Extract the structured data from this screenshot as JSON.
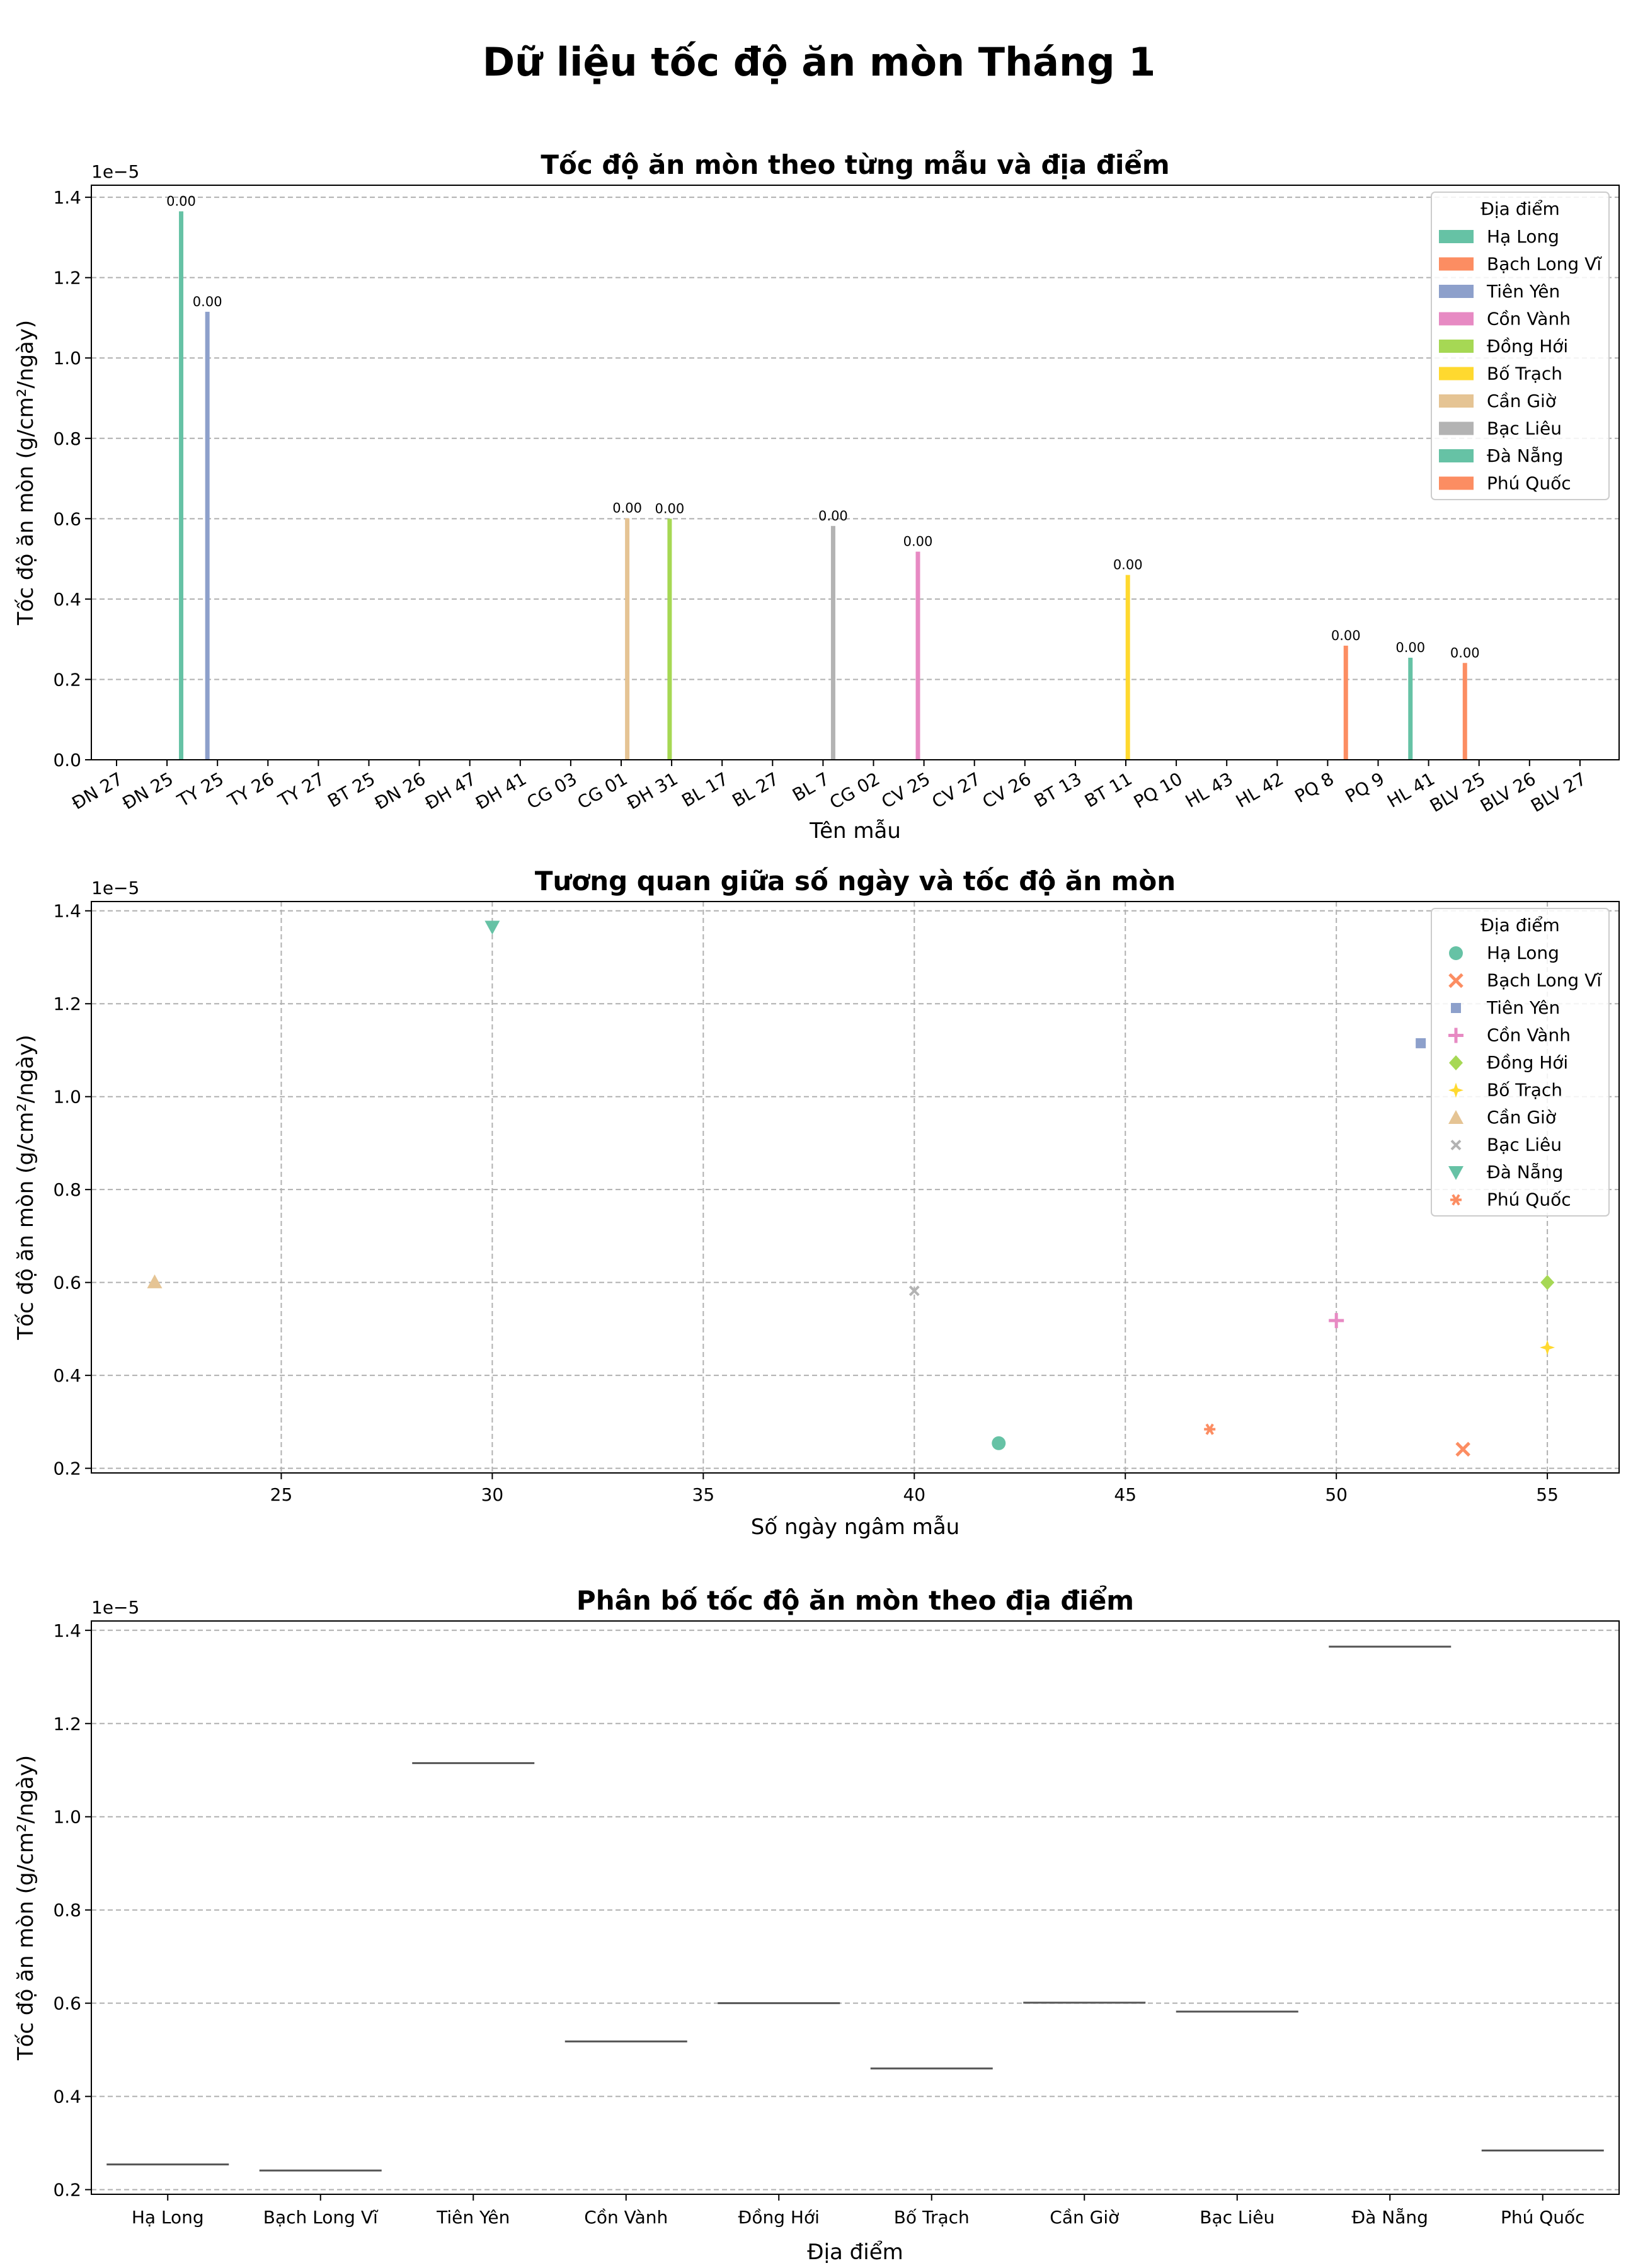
{
  "figure": {
    "title": "Dữ liệu tốc độ ăn mòn Tháng 1"
  },
  "colors": {
    "Hạ Long": "#66c2a5",
    "Bạch Long Vĩ": "#fc8d62",
    "Tiên Yên": "#8da0cb",
    "Cồn Vành": "#e78ac3",
    "Đồng Hới": "#a6d854",
    "Bố Trạch": "#ffd92f",
    "Cần Giờ": "#e5c494",
    "Bạc Liêu": "#b3b3b3",
    "Đà Nẵng": "#66c2a5",
    "Phú Quốc": "#fc8d62"
  },
  "chart_data": [
    {
      "type": "bar",
      "title": "Tốc độ ăn mòn theo từng mẫu và địa điểm",
      "xlabel": "Tên mẫu",
      "ylabel": "Tốc độ ăn mòn (g/cm²/ngày)",
      "offset_text": "1e−5",
      "ylim": [
        0,
        1.43
      ],
      "yticks": [
        "0.0",
        "0.2",
        "0.4",
        "0.6",
        "0.8",
        "1.0",
        "1.2",
        "1.4"
      ],
      "grid": "y",
      "legend": {
        "title": "Địa điểm",
        "position": "top-right",
        "entries": [
          "Hạ Long",
          "Bạch Long Vĩ",
          "Tiên Yên",
          "Cồn Vành",
          "Đồng Hới",
          "Bố Trạch",
          "Cần Giờ",
          "Bạc Liêu",
          "Đà Nẵng",
          "Phú Quốc"
        ]
      },
      "categories": [
        "ĐN 27",
        "ĐN 25",
        "TY 25",
        "TY 26",
        "TY 27",
        "BT 25",
        "ĐN 26",
        "ĐH 47",
        "ĐH 41",
        "CG 03",
        "CG 01",
        "ĐH 31",
        "BL 17",
        "BL 27",
        "BL 7",
        "CG 02",
        "CV 25",
        "CV 27",
        "CV 26",
        "BT 13",
        "BT 11",
        "PQ 10",
        "HL 43",
        "HL 42",
        "PQ 8",
        "PQ 9",
        "HL 41",
        "BLV 25",
        "BLV 26",
        "BLV 27"
      ],
      "bars": [
        {
          "category": "ĐN 25",
          "location": "Đà Nẵng",
          "value": 1.365,
          "label": "0.00"
        },
        {
          "category": "TY 25",
          "location": "Tiên Yên",
          "value": 1.115,
          "label": "0.00"
        },
        {
          "category": "CG 01",
          "location": "Cần Giờ",
          "value": 0.601,
          "label": "0.00"
        },
        {
          "category": "ĐH 31",
          "location": "Đồng Hới",
          "value": 0.6,
          "label": "0.00"
        },
        {
          "category": "BL 7",
          "location": "Bạc Liêu",
          "value": 0.582,
          "label": "0.00"
        },
        {
          "category": "CV 25",
          "location": "Cồn Vành",
          "value": 0.518,
          "label": "0.00"
        },
        {
          "category": "BT 11",
          "location": "Bố Trạch",
          "value": 0.46,
          "label": "0.00"
        },
        {
          "category": "PQ 8",
          "location": "Phú Quốc",
          "value": 0.284,
          "label": "0.00"
        },
        {
          "category": "HL 41",
          "location": "Hạ Long",
          "value": 0.254,
          "label": "0.00"
        },
        {
          "category": "BLV 25",
          "location": "Bạch Long Vĩ",
          "value": 0.241,
          "label": "0.00"
        }
      ]
    },
    {
      "type": "scatter",
      "title": "Tương quan giữa số ngày và tốc độ ăn mòn",
      "xlabel": "Số ngày ngâm mẫu",
      "ylabel": "Tốc độ ăn mòn (g/cm²/ngày)",
      "offset_text": "1e−5",
      "xlim": [
        20.5,
        56.7
      ],
      "ylim": [
        0.19,
        1.42
      ],
      "xticks": [
        "25",
        "30",
        "35",
        "40",
        "45",
        "50",
        "55"
      ],
      "yticks": [
        "0.2",
        "0.4",
        "0.6",
        "0.8",
        "1.0",
        "1.2",
        "1.4"
      ],
      "grid": "both",
      "legend": {
        "title": "Địa điểm",
        "position": "top-right"
      },
      "points": [
        {
          "location": "Hạ Long",
          "marker": "circle",
          "x": 42,
          "y": 0.254
        },
        {
          "location": "Bạch Long Vĩ",
          "marker": "x",
          "x": 53,
          "y": 0.241
        },
        {
          "location": "Tiên Yên",
          "marker": "square",
          "x": 52,
          "y": 1.115
        },
        {
          "location": "Cồn Vành",
          "marker": "plus",
          "x": 50,
          "y": 0.518
        },
        {
          "location": "Đồng Hới",
          "marker": "diamond",
          "x": 55,
          "y": 0.6
        },
        {
          "location": "Bố Trạch",
          "marker": "star4",
          "x": 55,
          "y": 0.46
        },
        {
          "location": "Cần Giờ",
          "marker": "triangle-up",
          "x": 22,
          "y": 0.601
        },
        {
          "location": "Bạc Liêu",
          "marker": "x-small",
          "x": 40,
          "y": 0.582
        },
        {
          "location": "Đà Nẵng",
          "marker": "triangle-down",
          "x": 30,
          "y": 1.365
        },
        {
          "location": "Phú Quốc",
          "marker": "asterisk",
          "x": 47,
          "y": 0.284
        }
      ]
    },
    {
      "type": "box",
      "title": "Phân bố tốc độ ăn mòn theo địa điểm",
      "xlabel": "Địa điểm",
      "ylabel": "Tốc độ ăn mòn (g/cm²/ngày)",
      "offset_text": "1e−5",
      "ylim": [
        0.19,
        1.42
      ],
      "yticks": [
        "0.2",
        "0.4",
        "0.6",
        "0.8",
        "1.0",
        "1.2",
        "1.4"
      ],
      "grid": "y",
      "categories": [
        "Hạ Long",
        "Bạch Long Vĩ",
        "Tiên Yên",
        "Cồn Vành",
        "Đồng Hới",
        "Bố Trạch",
        "Cần Giờ",
        "Bạc Liêu",
        "Đà Nẵng",
        "Phú Quốc"
      ],
      "values": [
        0.254,
        0.241,
        1.115,
        0.518,
        0.6,
        0.46,
        0.601,
        0.582,
        1.365,
        0.284
      ]
    }
  ]
}
